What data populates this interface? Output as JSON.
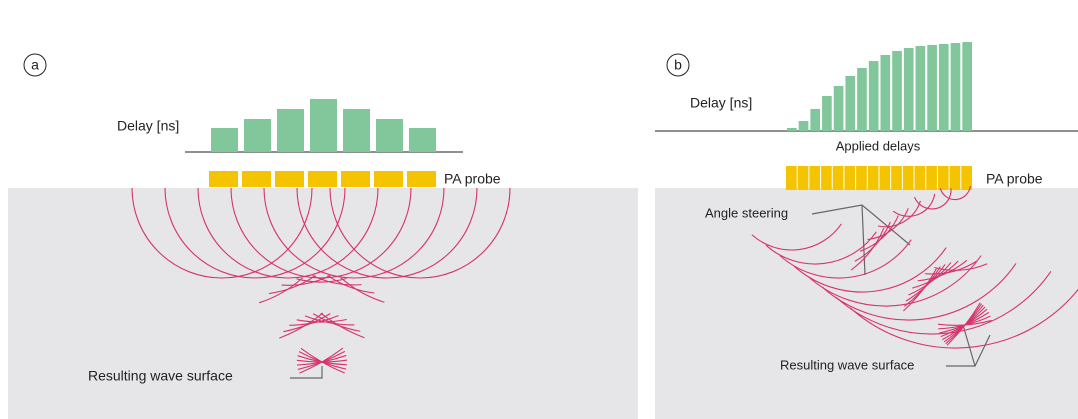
{
  "panel_a": {
    "label": "a",
    "delay_label": "Delay [ns]",
    "delays": [
      24,
      33,
      43,
      53,
      43,
      33,
      24
    ],
    "probe_label": "PA probe",
    "result_label": "Resulting wave surface"
  },
  "panel_b": {
    "label": "b",
    "delay_label": "Delay [ns]",
    "delays": [
      3,
      10,
      22,
      35,
      45,
      55,
      63,
      70,
      76,
      80,
      83,
      85,
      86,
      87,
      88,
      89
    ],
    "delays_caption": "Applied delays",
    "probe_label": "PA probe",
    "steering_label": "Angle steering",
    "result_label": "Resulting wave surface"
  }
}
